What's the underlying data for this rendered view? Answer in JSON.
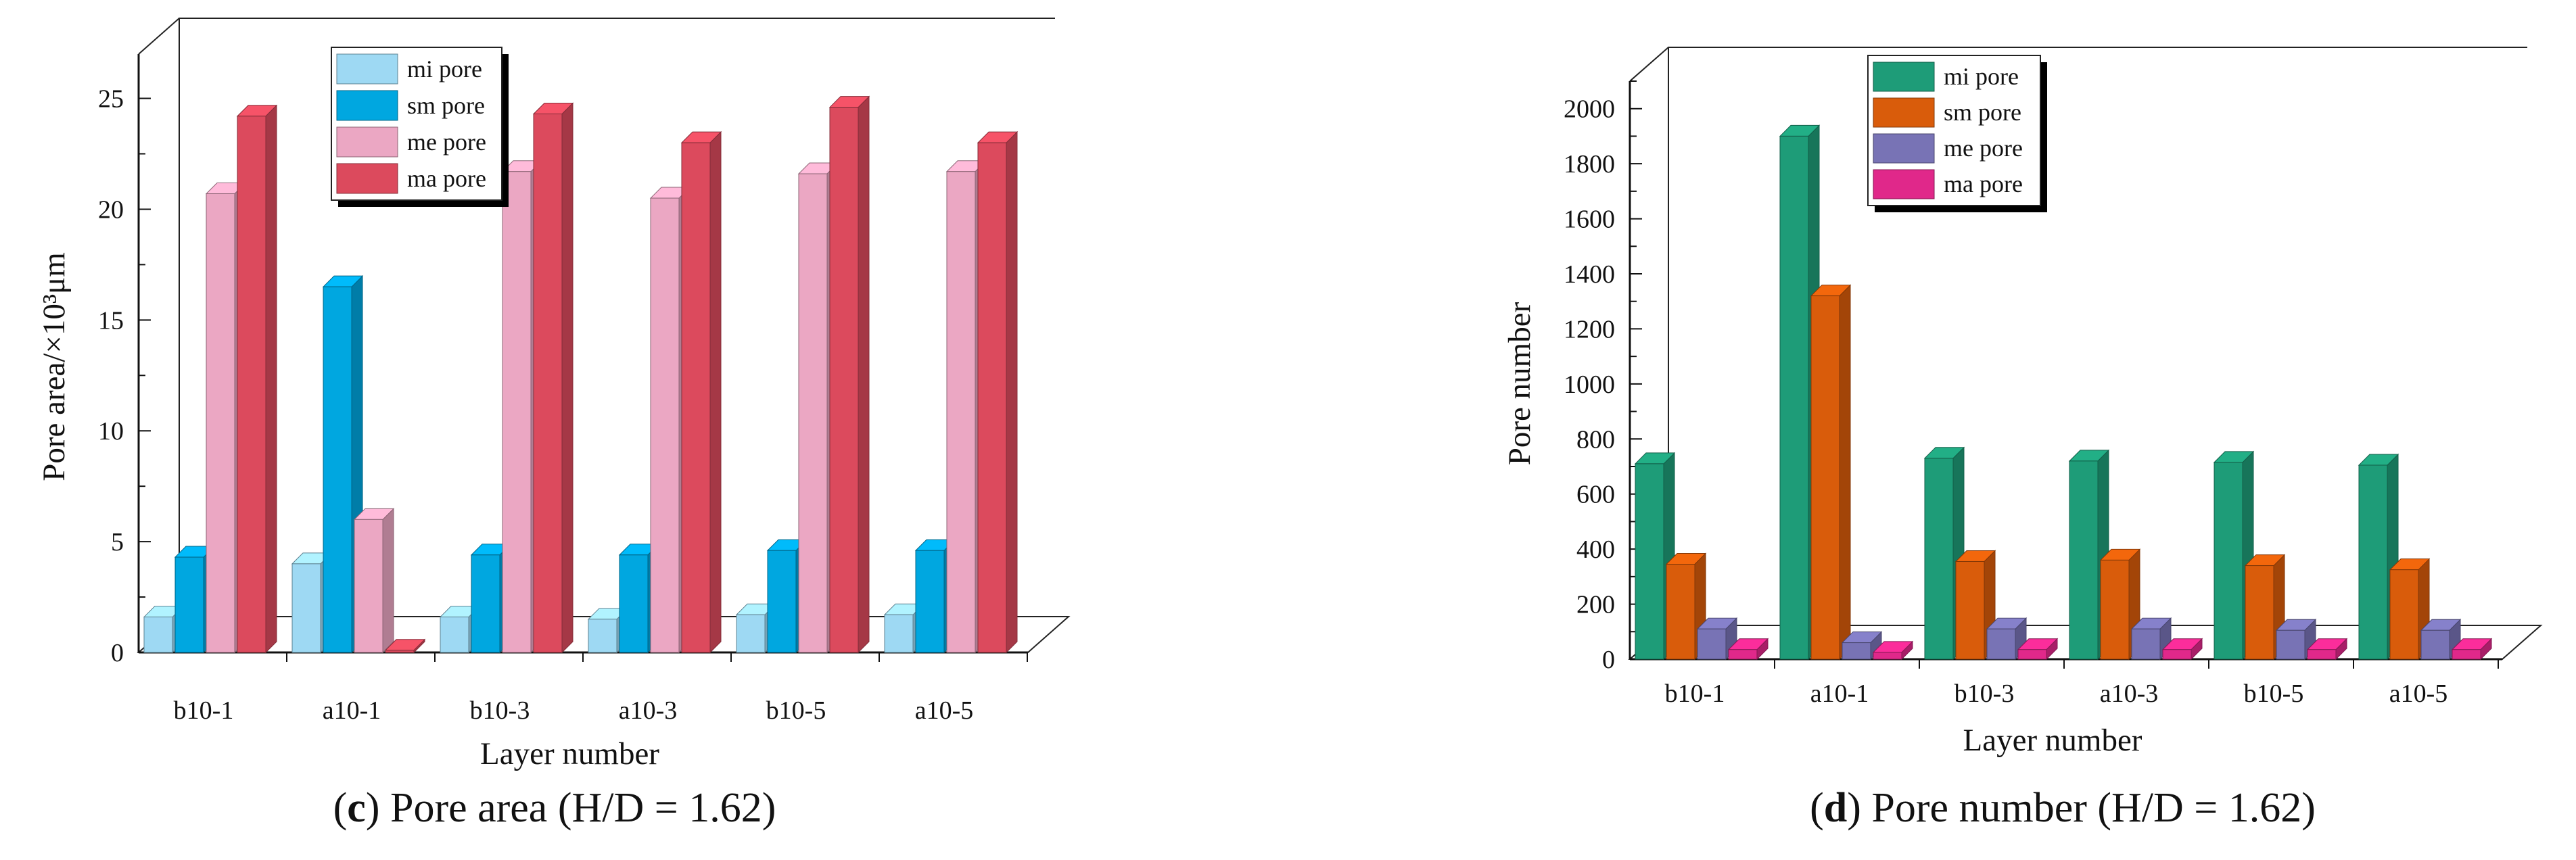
{
  "chart_data": [
    {
      "id": "c",
      "type": "bar",
      "panel_letter": "c",
      "caption_rest": " Pore area (H/D = 1.62)",
      "xlabel": "Layer number",
      "ylabel": "Pore area/×10³μm",
      "ylim": [
        0,
        27
      ],
      "yticks": [
        0,
        5,
        10,
        15,
        20,
        25
      ],
      "categories": [
        "b10-1",
        "a10-1",
        "b10-3",
        "a10-3",
        "b10-5",
        "a10-5"
      ],
      "series": [
        {
          "name": "mi pore",
          "color": "#9ed9f3",
          "values": [
            1.6,
            4.0,
            1.6,
            1.5,
            1.7,
            1.7
          ]
        },
        {
          "name": "sm pore",
          "color": "#00a7e0",
          "values": [
            4.3,
            16.5,
            4.4,
            4.4,
            4.6,
            4.6
          ]
        },
        {
          "name": "me pore",
          "color": "#eba7c3",
          "values": [
            20.7,
            6.0,
            21.7,
            20.5,
            21.6,
            21.7
          ]
        },
        {
          "name": "ma pore",
          "color": "#dc4a5d",
          "values": [
            24.2,
            0.1,
            24.3,
            23.0,
            24.6,
            23.0
          ]
        }
      ]
    },
    {
      "id": "d",
      "type": "bar",
      "panel_letter": "d",
      "caption_rest": " Pore number (H/D = 1.62)",
      "xlabel": "Layer number",
      "ylabel": "Pore number",
      "ylim": [
        0,
        2100
      ],
      "yticks": [
        0,
        200,
        400,
        600,
        800,
        1000,
        1200,
        1400,
        1600,
        1800,
        2000
      ],
      "categories": [
        "b10-1",
        "a10-1",
        "b10-3",
        "a10-3",
        "b10-5",
        "a10-5"
      ],
      "series": [
        {
          "name": "mi pore",
          "color": "#1e9c78",
          "values": [
            710,
            1900,
            730,
            720,
            715,
            705
          ]
        },
        {
          "name": "sm pore",
          "color": "#d95c0b",
          "values": [
            345,
            1320,
            355,
            360,
            340,
            325
          ]
        },
        {
          "name": "me pore",
          "color": "#7873b5",
          "values": [
            110,
            60,
            110,
            110,
            105,
            105
          ]
        },
        {
          "name": "ma pore",
          "color": "#e0288a",
          "values": [
            35,
            25,
            35,
            35,
            35,
            35
          ]
        }
      ]
    }
  ]
}
